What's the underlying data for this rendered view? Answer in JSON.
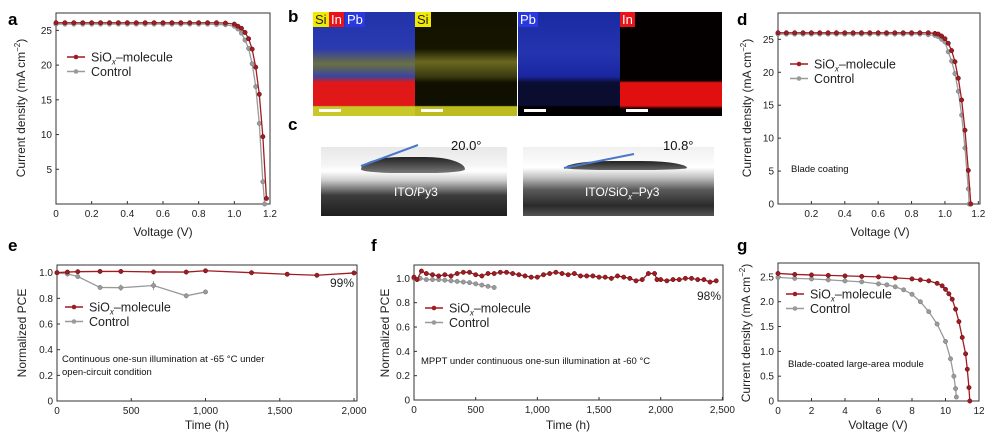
{
  "colors": {
    "siox": "#a01c22",
    "control": "#9a9a9a",
    "axis": "#222222",
    "angle_line": "#4a78c8"
  },
  "legend": {
    "siox": {
      "main": "SiO",
      "sub": "x",
      "rest": "–molecule"
    },
    "control": "Control"
  },
  "panel_b": {
    "letter": "b",
    "images": [
      {
        "labels": [
          {
            "text": "Si",
            "color": "#f2ea00"
          },
          {
            "text": "In",
            "color": "#e8141a"
          },
          {
            "text": "Pb",
            "color": "#2a38e0"
          }
        ]
      },
      {
        "labels": [
          {
            "text": "Si",
            "color": "#f2ea00"
          }
        ]
      },
      {
        "labels": [
          {
            "text": "Pb",
            "color": "#2a38e0"
          }
        ]
      },
      {
        "labels": [
          {
            "text": "In",
            "color": "#e8141a"
          }
        ]
      }
    ]
  },
  "panel_c": {
    "letter": "c",
    "images": [
      {
        "caption": "ITO/Py3",
        "angle": "20.0°"
      },
      {
        "caption_main": "ITO/SiO",
        "caption_sub": "x",
        "caption_rest": "–Py3",
        "angle": "10.8°"
      }
    ]
  },
  "chart_data": [
    {
      "panel": "a",
      "type": "line",
      "xlabel": "Voltage (V)",
      "ylabel": {
        "main": "Current density (mA cm",
        "sup": "−2",
        "end": ")"
      },
      "xlim": [
        0,
        1.2
      ],
      "ylim": [
        0,
        27.5
      ],
      "xticks": [
        "0",
        "0.2",
        "0.4",
        "0.6",
        "0.8",
        "1.0",
        "1.2"
      ],
      "xtick_values": [
        0,
        0.2,
        0.4,
        0.6,
        0.8,
        1.0,
        1.2
      ],
      "yticks": [
        "5",
        "10",
        "15",
        "20",
        "25"
      ],
      "ytick_values": [
        5,
        10,
        15,
        20,
        25
      ],
      "annotations": [],
      "series": [
        {
          "key": "siox",
          "x": [
            0,
            0.05,
            0.1,
            0.15,
            0.2,
            0.25,
            0.3,
            0.35,
            0.4,
            0.45,
            0.5,
            0.55,
            0.6,
            0.65,
            0.7,
            0.75,
            0.8,
            0.85,
            0.9,
            0.95,
            1.0,
            1.02,
            1.04,
            1.06,
            1.08,
            1.1,
            1.12,
            1.14,
            1.16,
            1.18
          ],
          "y": [
            26.1,
            26.1,
            26.1,
            26.1,
            26.1,
            26.1,
            26.1,
            26.1,
            26.1,
            26.1,
            26.1,
            26.1,
            26.1,
            26.1,
            26.1,
            26.1,
            26.1,
            26.1,
            26.1,
            26.05,
            25.9,
            25.6,
            25.3,
            24.7,
            23.8,
            22.3,
            19.7,
            15.8,
            9.7,
            0.8
          ]
        },
        {
          "key": "control",
          "x": [
            0,
            0.05,
            0.1,
            0.15,
            0.2,
            0.25,
            0.3,
            0.35,
            0.4,
            0.45,
            0.5,
            0.55,
            0.6,
            0.65,
            0.7,
            0.75,
            0.8,
            0.85,
            0.9,
            0.95,
            1.0,
            1.02,
            1.04,
            1.06,
            1.08,
            1.1,
            1.12,
            1.14,
            1.16,
            1.17
          ],
          "y": [
            25.9,
            25.9,
            25.9,
            25.9,
            25.9,
            25.9,
            25.9,
            25.9,
            25.9,
            25.9,
            25.9,
            25.9,
            25.9,
            25.9,
            25.9,
            25.9,
            25.9,
            25.9,
            25.85,
            25.8,
            25.6,
            25.2,
            24.6,
            23.6,
            22.4,
            20.2,
            16.9,
            11.6,
            3.2,
            0
          ]
        }
      ]
    },
    {
      "panel": "d",
      "type": "line",
      "xlabel": "Voltage (V)",
      "ylabel": {
        "main": "Current density (mA cm",
        "sup": "−2",
        "end": ")"
      },
      "xlim": [
        0,
        1.21
      ],
      "ylim": [
        0,
        29
      ],
      "xticks": [
        "0.2",
        "0.4",
        "0.6",
        "0.8",
        "1.0",
        "1.2"
      ],
      "xtick_values": [
        0.2,
        0.4,
        0.6,
        0.8,
        1.0,
        1.2
      ],
      "yticks": [
        "0",
        "5",
        "10",
        "15",
        "20",
        "25"
      ],
      "ytick_values": [
        0,
        5,
        10,
        15,
        20,
        25
      ],
      "annotations": [
        "Blade coating"
      ],
      "series": [
        {
          "key": "siox",
          "x": [
            0,
            0.05,
            0.1,
            0.15,
            0.2,
            0.25,
            0.3,
            0.35,
            0.4,
            0.45,
            0.5,
            0.55,
            0.6,
            0.65,
            0.7,
            0.75,
            0.8,
            0.85,
            0.9,
            0.94,
            0.96,
            0.98,
            1.0,
            1.02,
            1.04,
            1.06,
            1.08,
            1.1,
            1.12,
            1.14,
            1.155
          ],
          "y": [
            26.0,
            26.0,
            26.0,
            26.0,
            26.0,
            26.0,
            26.0,
            26.0,
            26.0,
            26.0,
            26.0,
            26.0,
            26.0,
            26.0,
            26.0,
            26.0,
            26.0,
            26.0,
            26.0,
            25.9,
            25.8,
            25.5,
            25.1,
            24.4,
            23.3,
            21.6,
            19.1,
            15.8,
            11.2,
            5.1,
            0
          ]
        },
        {
          "key": "control",
          "x": [
            0,
            0.05,
            0.1,
            0.15,
            0.2,
            0.25,
            0.3,
            0.35,
            0.4,
            0.45,
            0.5,
            0.55,
            0.6,
            0.65,
            0.7,
            0.75,
            0.8,
            0.85,
            0.9,
            0.94,
            0.96,
            0.98,
            1.0,
            1.02,
            1.04,
            1.06,
            1.08,
            1.1,
            1.12,
            1.14,
            1.145
          ],
          "y": [
            25.8,
            25.8,
            25.8,
            25.8,
            25.8,
            25.8,
            25.8,
            25.8,
            25.8,
            25.8,
            25.8,
            25.8,
            25.8,
            25.8,
            25.8,
            25.8,
            25.8,
            25.8,
            25.7,
            25.6,
            25.4,
            25.0,
            24.6,
            23.1,
            21.7,
            19.8,
            17.1,
            13.5,
            8.5,
            2.3,
            0
          ]
        }
      ]
    },
    {
      "panel": "e",
      "type": "line",
      "xlabel": "Time (h)",
      "ylabel": {
        "main": "Normalized PCE",
        "sup": "",
        "end": ""
      },
      "xlim": [
        0,
        2020
      ],
      "ylim": [
        0,
        1.06
      ],
      "xticks": [
        "0",
        "500",
        "1,000",
        "1,500",
        "2,000"
      ],
      "xtick_values": [
        0,
        500,
        1000,
        1500,
        2000
      ],
      "yticks": [
        "0",
        "0.2",
        "0.4",
        "0.6",
        "0.8",
        "1.0"
      ],
      "ytick_values": [
        0,
        0.2,
        0.4,
        0.6,
        0.8,
        1.0
      ],
      "annotations": [
        "Continuous one-sun illumination at -65 °C under",
        "open-circuit condition"
      ],
      "end_label": "99%",
      "series": [
        {
          "key": "siox",
          "x": [
            0,
            70,
            140,
            290,
            430,
            650,
            870,
            1000,
            1310,
            1550,
            1750,
            2000
          ],
          "y": [
            1.0,
            1.005,
            1.008,
            1.01,
            1.01,
            1.006,
            1.005,
            1.015,
            1.0,
            0.988,
            0.98,
            0.998
          ]
        },
        {
          "key": "control",
          "x": [
            0,
            70,
            140,
            290,
            430,
            650,
            870,
            1000
          ],
          "y": [
            1.0,
            0.99,
            0.97,
            0.885,
            0.883,
            0.9,
            0.82,
            0.85
          ],
          "err": [
            0.01,
            0.02,
            0.01,
            0.015,
            0.025,
            0.035,
            0.02,
            0.01
          ]
        }
      ]
    },
    {
      "panel": "f",
      "type": "line",
      "xlabel": "Time (h)",
      "ylabel": {
        "main": "Normalized PCE",
        "sup": "",
        "end": ""
      },
      "xlim": [
        0,
        2505
      ],
      "ylim": [
        0,
        1.11
      ],
      "xticks": [
        "0",
        "500",
        "1,000",
        "1,500",
        "2,000",
        "2,500"
      ],
      "xtick_values": [
        0,
        500,
        1000,
        1500,
        2000,
        2500
      ],
      "yticks": [
        "0",
        "0.2",
        "0.4",
        "0.6",
        "0.8",
        "1.0"
      ],
      "ytick_values": [
        0,
        0.2,
        0.4,
        0.6,
        0.8,
        1.0
      ],
      "annotations": [
        "MPPT under continuous one-sun illumination at -60 °C"
      ],
      "end_label": "98%",
      "series": [
        {
          "key": "siox",
          "x": [
            0,
            25,
            60,
            100,
            150,
            200,
            250,
            300,
            350,
            400,
            450,
            500,
            550,
            600,
            650,
            700,
            750,
            800,
            850,
            900,
            950,
            1000,
            1050,
            1100,
            1150,
            1200,
            1250,
            1300,
            1350,
            1400,
            1450,
            1500,
            1550,
            1600,
            1650,
            1700,
            1750,
            1800,
            1850,
            1900,
            1950,
            1970,
            2000,
            2050,
            2100,
            2150,
            2200,
            2250,
            2300,
            2350,
            2400,
            2450
          ],
          "y": [
            1.01,
            0.99,
            1.06,
            1.04,
            1.03,
            1.02,
            1.03,
            1.02,
            1.04,
            1.05,
            1.05,
            1.03,
            1.02,
            1.04,
            1.04,
            1.05,
            1.05,
            1.04,
            1.03,
            1.02,
            1.01,
            1.01,
            1.03,
            1.04,
            1.05,
            1.04,
            1.03,
            1.04,
            1.02,
            1.02,
            1.02,
            1.01,
            1.01,
            1.0,
            1.02,
            1.01,
            1.0,
            0.98,
            0.99,
            1.04,
            1.04,
            0.99,
            0.99,
            0.98,
            0.99,
            0.99,
            1.0,
            1.0,
            0.99,
            0.99,
            0.97,
            0.98
          ]
        },
        {
          "key": "control",
          "x": [
            0,
            50,
            100,
            150,
            200,
            250,
            300,
            350,
            400,
            450,
            500,
            550,
            600,
            650
          ],
          "y": [
            1.0,
            1.0,
            0.99,
            0.99,
            0.99,
            0.985,
            0.98,
            0.975,
            0.97,
            0.965,
            0.955,
            0.945,
            0.935,
            0.925
          ]
        }
      ]
    },
    {
      "panel": "g",
      "type": "line",
      "xlabel": "Voltage (V)",
      "ylabel": {
        "main": "Current density (mA cm",
        "sup": "−2",
        "end": ")"
      },
      "xlim": [
        0,
        12
      ],
      "ylim": [
        0,
        2.78
      ],
      "xticks": [
        "0",
        "2",
        "4",
        "6",
        "8",
        "10",
        "12"
      ],
      "xtick_values": [
        0,
        2,
        4,
        6,
        8,
        10,
        12
      ],
      "yticks": [
        "0",
        "0.5",
        "1.0",
        "1.5",
        "2.0",
        "2.5"
      ],
      "ytick_values": [
        0,
        0.5,
        1.0,
        1.5,
        2.0,
        2.5
      ],
      "annotations": [
        "Blade-coated large-area module"
      ],
      "series": [
        {
          "key": "siox",
          "x": [
            0,
            1,
            2,
            3,
            4,
            5,
            6,
            7,
            8,
            8.5,
            9,
            9.5,
            9.8,
            10,
            10.2,
            10.4,
            10.6,
            10.8,
            11.0,
            11.2,
            11.3,
            11.4,
            11.45
          ],
          "y": [
            2.57,
            2.55,
            2.54,
            2.53,
            2.52,
            2.51,
            2.5,
            2.48,
            2.46,
            2.44,
            2.42,
            2.37,
            2.32,
            2.25,
            2.16,
            2.05,
            1.85,
            1.6,
            1.28,
            0.95,
            0.64,
            0.27,
            0
          ]
        },
        {
          "key": "control",
          "x": [
            0,
            1,
            2,
            3,
            4,
            5,
            6,
            6.5,
            7,
            7.5,
            8,
            8.5,
            9,
            9.5,
            10,
            10.3,
            10.5,
            10.6,
            10.65
          ],
          "y": [
            2.49,
            2.47,
            2.46,
            2.44,
            2.42,
            2.4,
            2.36,
            2.34,
            2.3,
            2.24,
            2.15,
            2.0,
            1.8,
            1.55,
            1.2,
            0.85,
            0.5,
            0.25,
            0.08
          ]
        }
      ]
    }
  ]
}
